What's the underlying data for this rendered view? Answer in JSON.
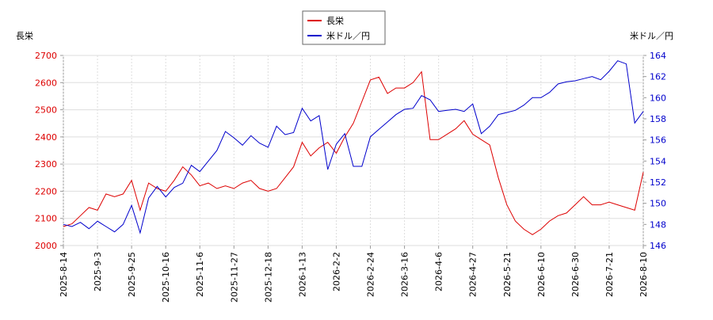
{
  "chart_data": {
    "type": "line",
    "ylabel": "長栄",
    "y2label": "米ドル／円",
    "legend": "top",
    "grid": true,
    "categories": [
      "2025-8-14",
      null,
      null,
      null,
      "2025-9-3",
      null,
      null,
      null,
      "2025-9-25",
      null,
      null,
      null,
      "2025-10-16",
      null,
      null,
      null,
      "2025-11-6",
      null,
      null,
      null,
      "2025-11-27",
      null,
      null,
      null,
      "2025-12-18",
      null,
      null,
      null,
      "2026-1-13",
      null,
      null,
      null,
      "2026-2-2",
      null,
      null,
      null,
      "2026-2-24",
      null,
      null,
      null,
      "2026-3-16",
      null,
      null,
      null,
      "2026-4-6",
      null,
      null,
      null,
      "2026-4-27",
      null,
      null,
      null,
      "2026-5-21",
      null,
      null,
      null,
      "2026-6-10",
      null,
      null,
      null,
      "2026-6-30",
      null,
      null,
      null,
      "2026-7-21",
      null,
      null,
      null,
      "2026-8-10"
    ],
    "ylim": [
      2000,
      2700
    ],
    "yticks": [
      2000,
      2100,
      2200,
      2300,
      2400,
      2500,
      2600,
      2700
    ],
    "y2lim": [
      146,
      164
    ],
    "y2ticks": [
      146,
      148,
      150,
      152,
      154,
      156,
      158,
      160,
      162,
      164
    ],
    "series": [
      {
        "name": "長栄",
        "color": "#dd0000",
        "values": [
          2070,
          2080,
          2110,
          2140,
          2130,
          2190,
          2180,
          2190,
          2240,
          2130,
          2230,
          2210,
          2200,
          2240,
          2290,
          2260,
          2220,
          2230,
          2210,
          2220,
          2210,
          2230,
          2240,
          2210,
          2200,
          2210,
          2250,
          2290,
          2380,
          2330,
          2360,
          2380,
          2340,
          2400,
          2450,
          2530,
          2610,
          2620,
          2560,
          2580,
          2580,
          2600,
          2640,
          2390,
          2390,
          2410,
          2430,
          2460,
          2410,
          2390,
          2370,
          2250,
          2150,
          2090,
          2060,
          2040,
          2060,
          2090,
          2110,
          2120,
          2150,
          2180,
          2150,
          2150,
          2160,
          2150,
          2140,
          2130,
          2270
        ]
      },
      {
        "name": "米ドル／円",
        "color": "#0000cc",
        "axis": "y2",
        "values": [
          148,
          147.8,
          148.2,
          147.6,
          148.3,
          147.8,
          147.3,
          148,
          149.8,
          147.2,
          150.5,
          151.6,
          150.6,
          151.5,
          151.9,
          153.6,
          153,
          154,
          155,
          156.8,
          156.2,
          155.5,
          156.4,
          155.7,
          155.3,
          157.3,
          156.5,
          156.7,
          159,
          157.8,
          158.3,
          153.2,
          155.6,
          156.6,
          153.5,
          153.5,
          156.3,
          157,
          157.7,
          158.4,
          158.9,
          159,
          160.2,
          159.8,
          158.7,
          158.8,
          158.9,
          158.7,
          159.4,
          156.6,
          157.3,
          158.4,
          158.6,
          158.8,
          159.3,
          160,
          160,
          160.5,
          161.3,
          161.5,
          161.6,
          161.8,
          162,
          161.7,
          162.5,
          163.5,
          163.2,
          157.6,
          158.7
        ]
      }
    ]
  }
}
